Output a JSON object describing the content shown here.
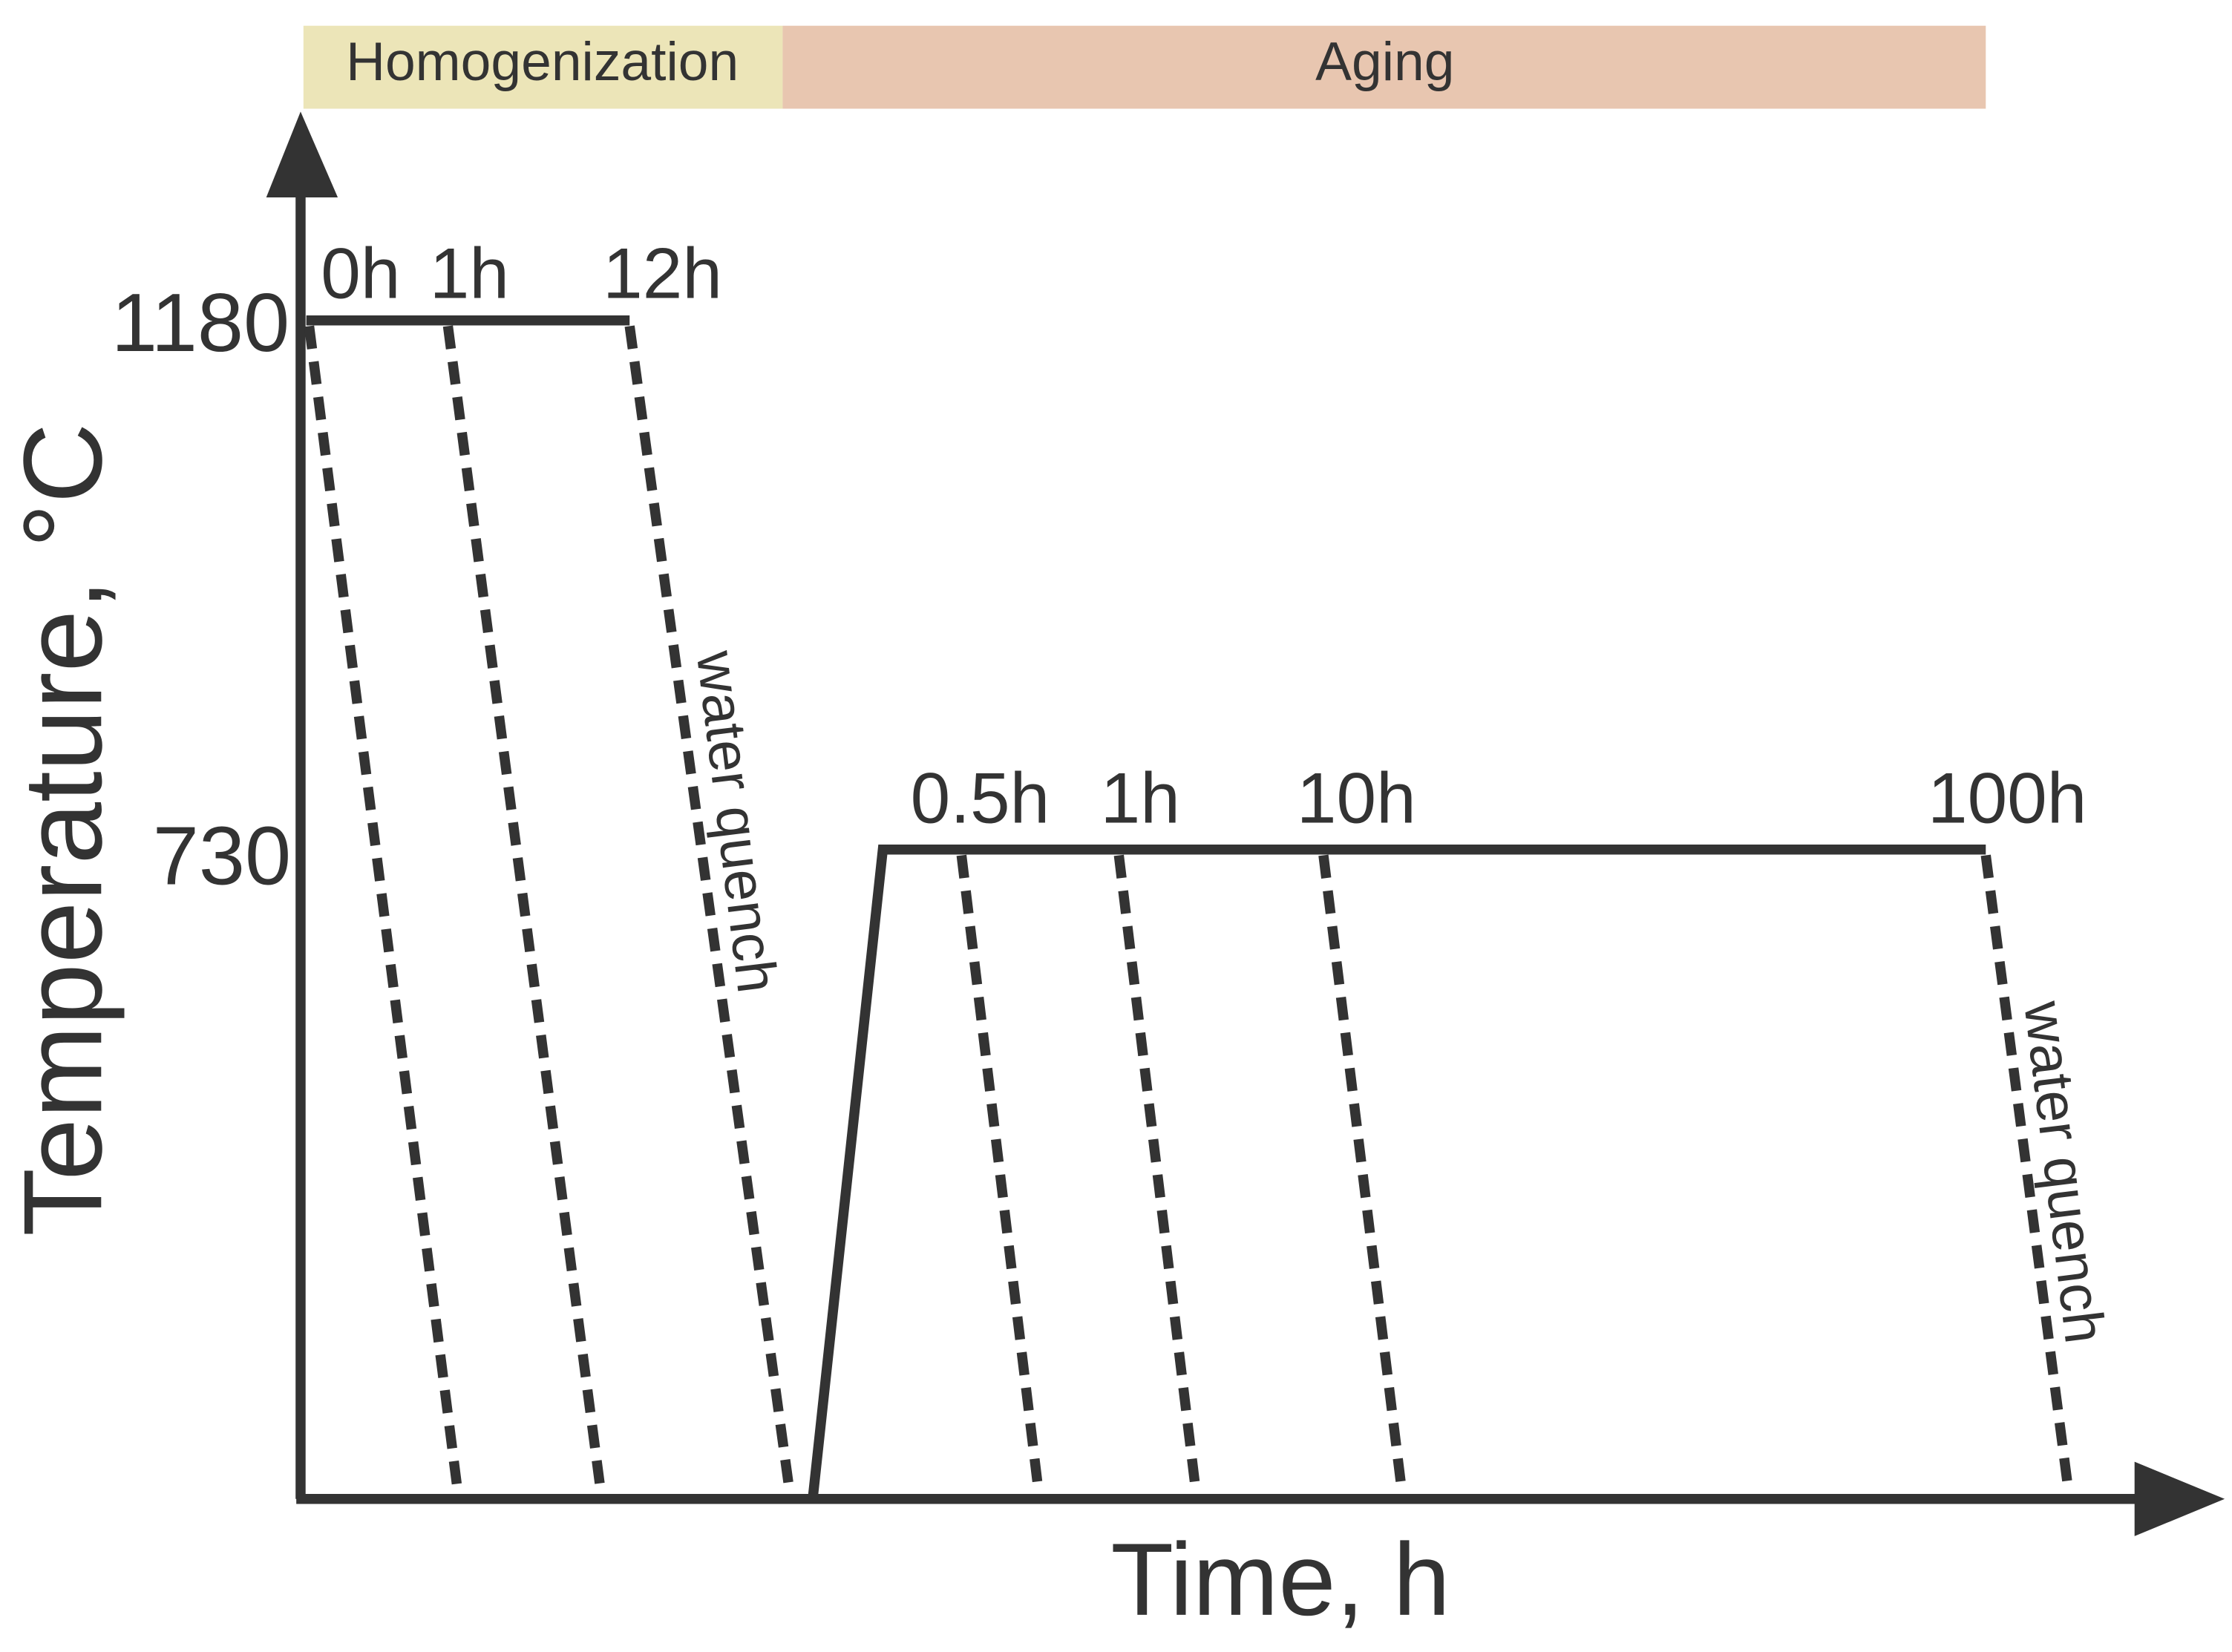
{
  "stages": [
    "Homogenization",
    "Aging"
  ],
  "temperatures": [
    "1180",
    "730"
  ],
  "homogenization_times": [
    "0h",
    "1h",
    "12h"
  ],
  "aging_times": [
    "0.5h",
    "1h",
    "10h",
    "100h"
  ],
  "annotations": [
    "water quench",
    "water quench"
  ],
  "y_axis_label": "Temperature, °C",
  "x_axis_label": "Time, h"
}
